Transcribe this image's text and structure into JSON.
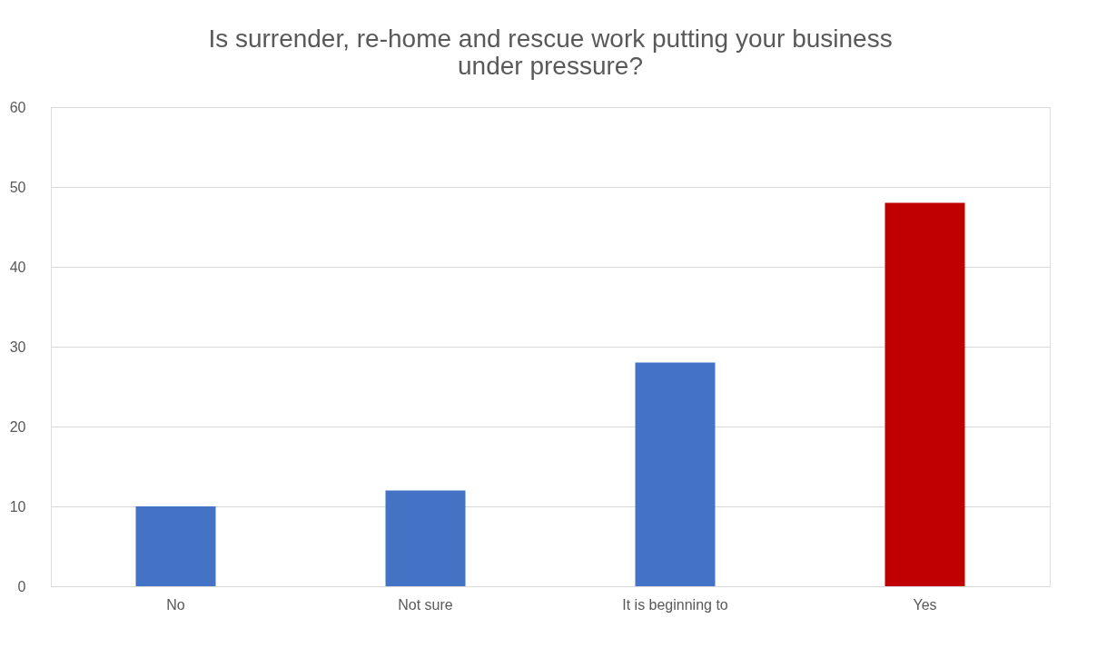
{
  "chart_data": {
    "type": "bar",
    "title": [
      "Is surrender, re-home and rescue work putting your business",
      "under pressure?"
    ],
    "categories": [
      "No",
      "Not sure",
      "It is beginning to",
      "Yes"
    ],
    "values": [
      10,
      12,
      28,
      48
    ],
    "colors": [
      "#4472c4",
      "#4472c4",
      "#4472c4",
      "#c00000"
    ],
    "ylim": [
      0,
      60
    ],
    "yticks": [
      0,
      10,
      20,
      30,
      40,
      50,
      60
    ],
    "grid": "y"
  }
}
